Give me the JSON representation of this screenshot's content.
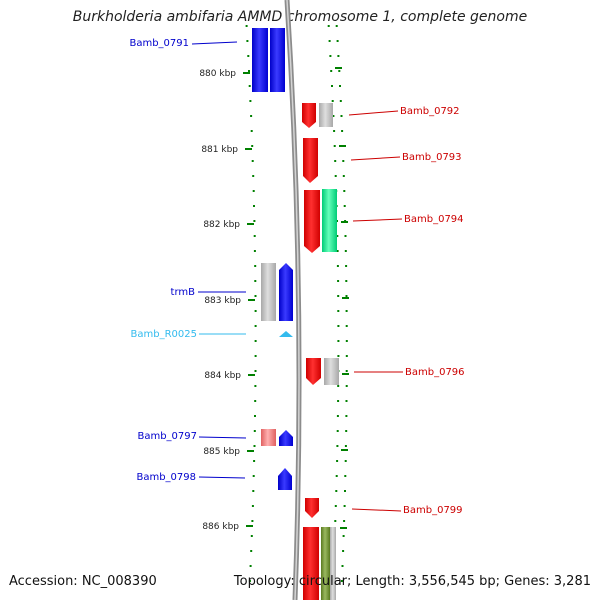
{
  "title": "Burkholderia ambifaria AMMD chromosome 1, complete genome",
  "footer": {
    "accession": "Accession: NC_008390",
    "topology": "Topology: circular; Length: 3,556,545 bp; Genes: 3,281"
  },
  "colors": {
    "forward_gene": "#0000ff",
    "reverse_gene": "#ff0000",
    "neutral_gene": "#b8b8b8",
    "rna_gene": "#33ccee",
    "green_gene": "#00ee88",
    "olive_gene": "#6b8e23",
    "pink_gene": "#f08080",
    "tick": "#008000",
    "backbone": "#999999"
  },
  "scale_labels": [
    {
      "kbp": 880,
      "label": "880 kbp"
    },
    {
      "kbp": 881,
      "label": "881 kbp"
    },
    {
      "kbp": 882,
      "label": "882 kbp"
    },
    {
      "kbp": 883,
      "label": "883 kbp"
    },
    {
      "kbp": 884,
      "label": "884 kbp"
    },
    {
      "kbp": 885,
      "label": "885 kbp"
    },
    {
      "kbp": 886,
      "label": "886 kbp"
    }
  ],
  "gene_labels": [
    {
      "name": "Bamb_0791",
      "color": "#0000cc",
      "side": "left"
    },
    {
      "name": "Bamb_0792",
      "color": "#cc0000",
      "side": "right"
    },
    {
      "name": "Bamb_0793",
      "color": "#cc0000",
      "side": "right"
    },
    {
      "name": "Bamb_0794",
      "color": "#cc0000",
      "side": "right"
    },
    {
      "name": "trmB",
      "color": "#0000cc",
      "side": "left"
    },
    {
      "name": "Bamb_R0025",
      "color": "#33bbee",
      "side": "left"
    },
    {
      "name": "Bamb_0796",
      "color": "#cc0000",
      "side": "right"
    },
    {
      "name": "Bamb_0797",
      "color": "#0000cc",
      "side": "left"
    },
    {
      "name": "Bamb_0798",
      "color": "#0000cc",
      "side": "left"
    },
    {
      "name": "Bamb_0799",
      "color": "#cc0000",
      "side": "right"
    }
  ]
}
